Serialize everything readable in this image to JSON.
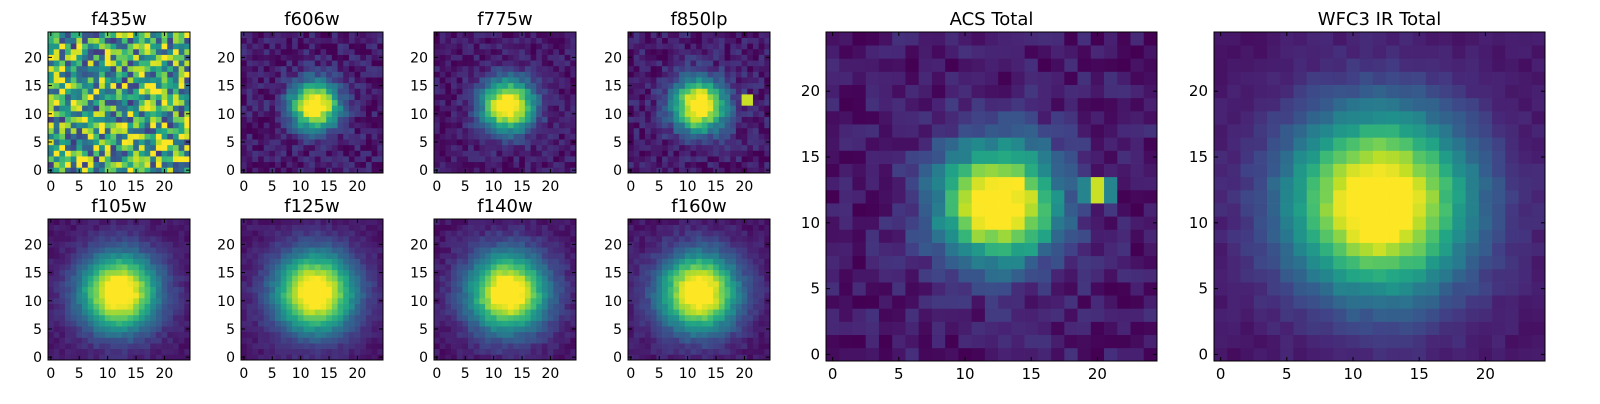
{
  "chart_data": [
    {
      "type": "heatmap",
      "title": "f435w",
      "kind": "noise",
      "xticks": [
        "0",
        "5",
        "10",
        "15",
        "20"
      ],
      "yticks": [
        "0",
        "5",
        "10",
        "15",
        "20"
      ],
      "xlim": [
        0,
        24
      ],
      "ylim": [
        0,
        24
      ],
      "peak": [
        12,
        12
      ],
      "sigma": 0,
      "noise": 0.4,
      "colormap": "viridis"
    },
    {
      "type": "heatmap",
      "title": "f606w",
      "kind": "gauss",
      "xticks": [
        "0",
        "5",
        "10",
        "15",
        "20"
      ],
      "yticks": [
        "0",
        "5",
        "10",
        "15",
        "20"
      ],
      "xlim": [
        0,
        24
      ],
      "ylim": [
        0,
        24
      ],
      "peak": [
        12.5,
        11.5
      ],
      "sigma": 3.0,
      "noise": 0.1,
      "colormap": "viridis"
    },
    {
      "type": "heatmap",
      "title": "f775w",
      "kind": "gauss",
      "xticks": [
        "0",
        "5",
        "10",
        "15",
        "20"
      ],
      "yticks": [
        "0",
        "5",
        "10",
        "15",
        "20"
      ],
      "xlim": [
        0,
        24
      ],
      "ylim": [
        0,
        24
      ],
      "peak": [
        12.5,
        11.5
      ],
      "sigma": 3.2,
      "noise": 0.08,
      "colormap": "viridis"
    },
    {
      "type": "heatmap",
      "title": "f850lp",
      "kind": "gauss",
      "xticks": [
        "0",
        "5",
        "10",
        "15",
        "20"
      ],
      "yticks": [
        "0",
        "5",
        "10",
        "15",
        "20"
      ],
      "xlim": [
        0,
        24
      ],
      "ylim": [
        0,
        24
      ],
      "peak": [
        12,
        11.5
      ],
      "sigma": 3.3,
      "noise": 0.1,
      "hot": [
        20.5,
        12.5
      ],
      "colormap": "viridis"
    },
    {
      "type": "heatmap",
      "title": "f105w",
      "kind": "gauss",
      "xticks": [
        "0",
        "5",
        "10",
        "15",
        "20"
      ],
      "yticks": [
        "0",
        "5",
        "10",
        "15",
        "20"
      ],
      "xlim": [
        0,
        24
      ],
      "ylim": [
        0,
        24
      ],
      "peak": [
        12,
        11.5
      ],
      "sigma": 4.8,
      "noise": 0.04,
      "colormap": "viridis"
    },
    {
      "type": "heatmap",
      "title": "f125w",
      "kind": "gauss",
      "xticks": [
        "0",
        "5",
        "10",
        "15",
        "20"
      ],
      "yticks": [
        "0",
        "5",
        "10",
        "15",
        "20"
      ],
      "xlim": [
        0,
        24
      ],
      "ylim": [
        0,
        24
      ],
      "peak": [
        12.5,
        11.5
      ],
      "sigma": 4.9,
      "noise": 0.04,
      "colormap": "viridis"
    },
    {
      "type": "heatmap",
      "title": "f140w",
      "kind": "gauss",
      "xticks": [
        "0",
        "5",
        "10",
        "15",
        "20"
      ],
      "yticks": [
        "0",
        "5",
        "10",
        "15",
        "20"
      ],
      "xlim": [
        0,
        24
      ],
      "ylim": [
        0,
        24
      ],
      "peak": [
        12.5,
        11.5
      ],
      "sigma": 4.8,
      "noise": 0.05,
      "colormap": "viridis"
    },
    {
      "type": "heatmap",
      "title": "f160w",
      "kind": "gauss",
      "xticks": [
        "0",
        "5",
        "10",
        "15",
        "20"
      ],
      "yticks": [
        "0",
        "5",
        "10",
        "15",
        "20"
      ],
      "xlim": [
        0,
        24
      ],
      "ylim": [
        0,
        24
      ],
      "peak": [
        12,
        11.5
      ],
      "sigma": 4.8,
      "noise": 0.05,
      "colormap": "viridis"
    },
    {
      "type": "heatmap",
      "title": "ACS Total",
      "kind": "gauss",
      "xticks": [
        "0",
        "5",
        "10",
        "15",
        "20"
      ],
      "yticks": [
        "0",
        "5",
        "10",
        "15",
        "20"
      ],
      "xlim": [
        0,
        24
      ],
      "ylim": [
        0,
        24
      ],
      "peak": [
        12.5,
        11.5
      ],
      "sigma": 3.2,
      "noise": 0.08,
      "hot": [
        20,
        12.5
      ],
      "colormap": "viridis"
    },
    {
      "type": "heatmap",
      "title": "WFC3 IR Total",
      "kind": "gauss",
      "xticks": [
        "0",
        "5",
        "10",
        "15",
        "20"
      ],
      "yticks": [
        "0",
        "5",
        "10",
        "15",
        "20"
      ],
      "xlim": [
        0,
        24
      ],
      "ylim": [
        0,
        24
      ],
      "peak": [
        12,
        11.5
      ],
      "sigma": 4.9,
      "noise": 0.03,
      "colormap": "viridis"
    }
  ]
}
